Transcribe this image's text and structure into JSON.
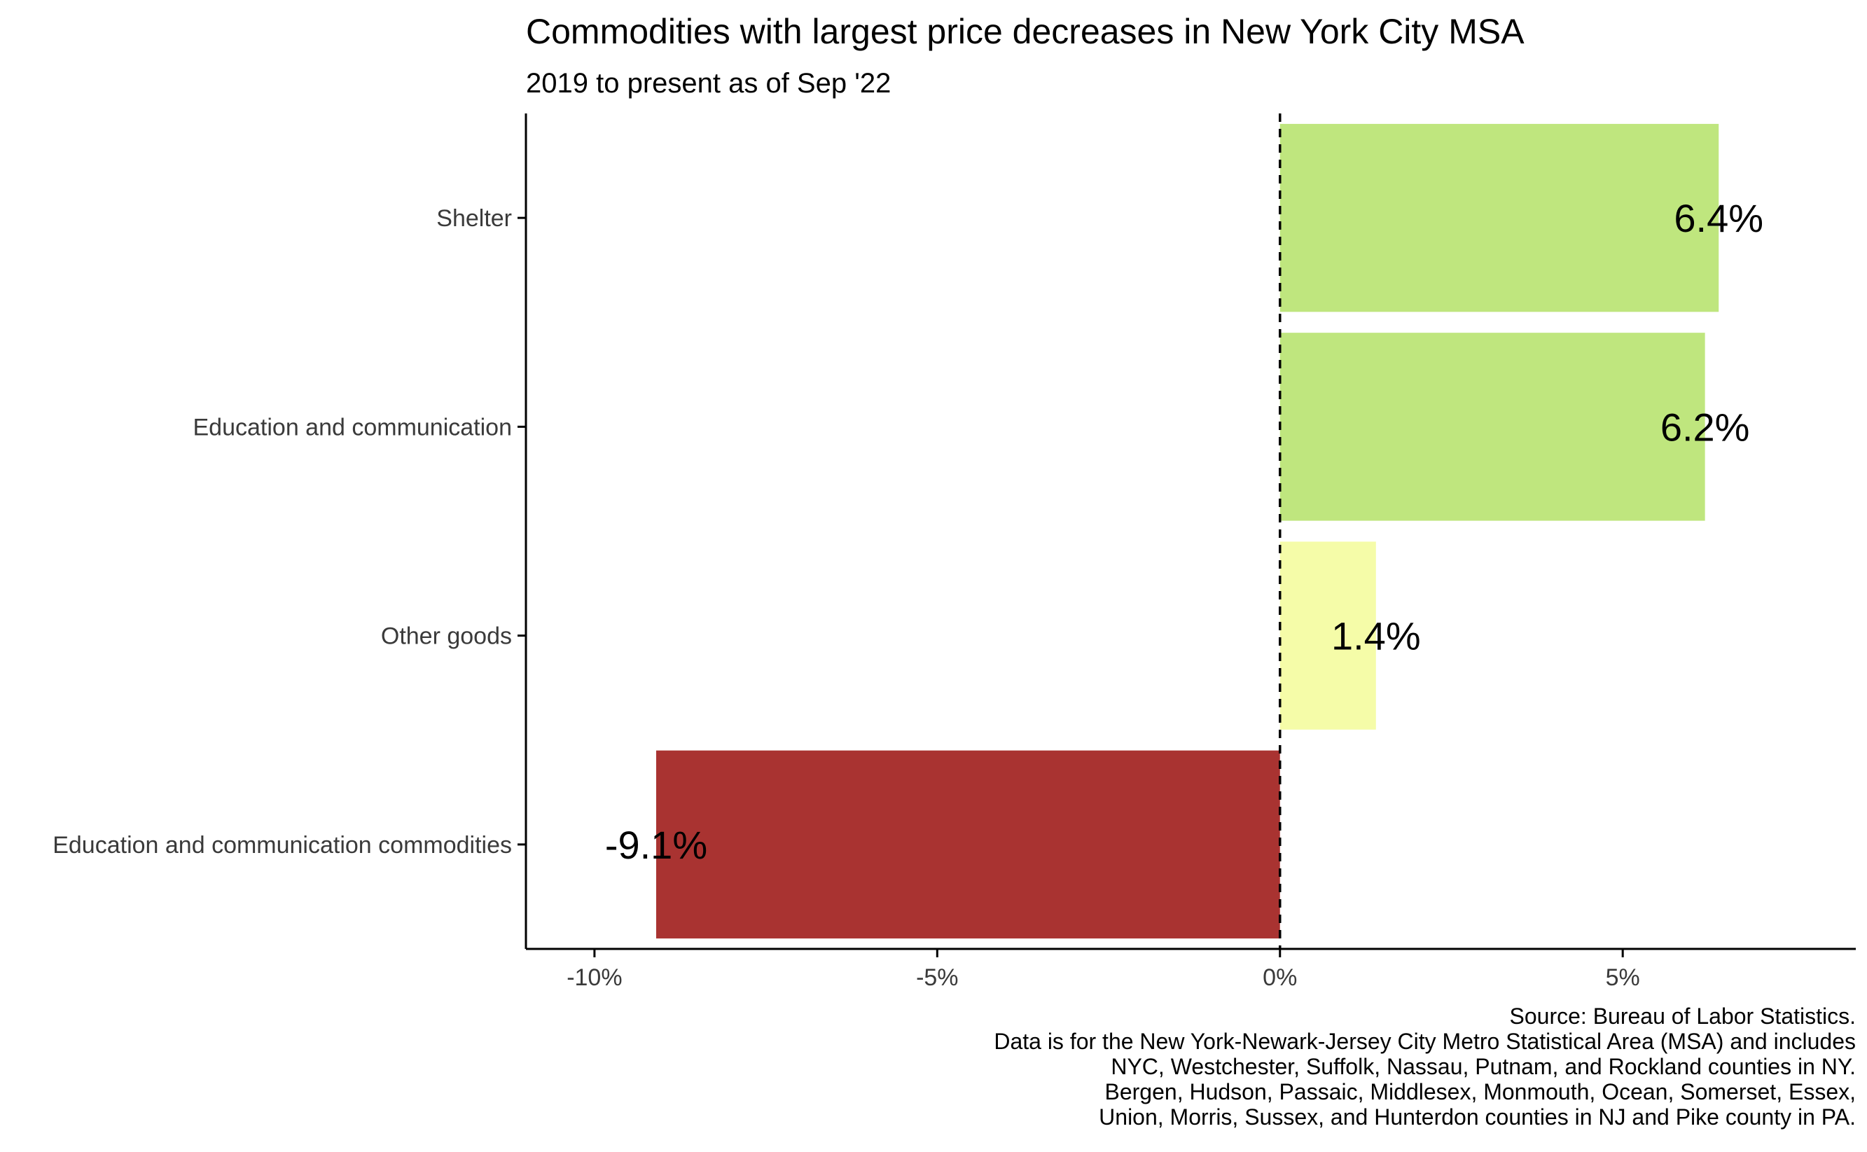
{
  "chart_data": {
    "type": "bar",
    "orientation": "horizontal",
    "title": "Commodities with largest price decreases in New York City MSA",
    "subtitle": "2019 to present as of Sep '22",
    "xlabel": "",
    "ylabel": "",
    "xlim": [
      -11,
      8.4
    ],
    "x_ticks": [
      -10,
      -5,
      0,
      5
    ],
    "x_tick_labels": [
      "-10%",
      "-5%",
      "0%",
      "5%"
    ],
    "categories": [
      "Shelter",
      "Education and communication",
      "Other goods",
      "Education and communication commodities"
    ],
    "values": [
      6.4,
      6.2,
      1.4,
      -9.1
    ],
    "value_labels": [
      "6.4%",
      "6.2%",
      "1.4%",
      "-9.1%"
    ],
    "bar_colors": [
      "#bfe67e",
      "#bfe67e",
      "#f5fca8",
      "#a93331"
    ],
    "reference_line": {
      "x": 0,
      "style": "dashed"
    },
    "grid": false,
    "caption_lines": [
      "Source: Bureau of Labor Statistics.",
      "Data is for the New York-Newark-Jersey City Metro Statistical Area (MSA) and includes",
      "NYC, Westchester, Suffolk, Nassau, Putnam, and Rockland counties in NY.",
      "Bergen, Hudson, Passaic, Middlesex, Monmouth, Ocean, Somerset, Essex,",
      "Union, Morris, Sussex, and Hunterdon counties in NJ and Pike county in PA."
    ]
  }
}
